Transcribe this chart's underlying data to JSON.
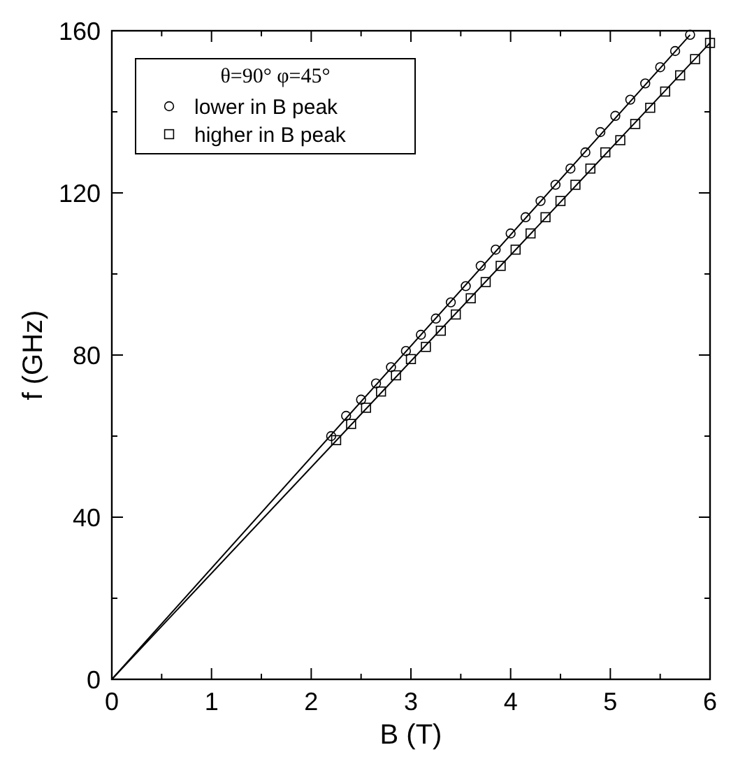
{
  "chart_data": {
    "type": "scatter",
    "xlabel": "B (T)",
    "ylabel": "f (GHz)",
    "legend_title": "θ=90° φ=45°",
    "xlim": [
      0,
      6
    ],
    "ylim": [
      0,
      160
    ],
    "xticks": [
      0,
      {
        "value": 0.5,
        "label": null
      },
      1,
      {
        "value": 1.5,
        "label": null
      },
      2,
      {
        "value": 2.5,
        "label": null
      },
      3,
      {
        "value": 3.5,
        "label": null
      },
      4,
      {
        "value": 4.5,
        "label": null
      },
      5,
      {
        "value": 5.5,
        "label": null
      },
      6
    ],
    "yticks": [
      0,
      {
        "value": 20,
        "label": null
      },
      40,
      {
        "value": 60,
        "label": null
      },
      80,
      {
        "value": 100,
        "label": null
      },
      120,
      {
        "value": 140,
        "label": null
      },
      160
    ],
    "legend": "top left",
    "grid": false,
    "series": [
      {
        "name": "lower in B peak",
        "marker": "circle",
        "color": "#000000",
        "x": [
          2.2,
          2.35,
          2.5,
          2.65,
          2.8,
          2.95,
          3.1,
          3.25,
          3.4,
          3.55,
          3.7,
          3.85,
          4.0,
          4.15,
          4.3,
          4.45,
          4.6,
          4.75,
          4.9,
          5.05,
          5.2,
          5.35,
          5.5,
          5.65,
          5.8
        ],
        "values": [
          60,
          65,
          69,
          73,
          77,
          81,
          85,
          89,
          93,
          97,
          102,
          106,
          110,
          114,
          118,
          122,
          126,
          130,
          135,
          139,
          143,
          147,
          151,
          155,
          159
        ]
      },
      {
        "name": "higher in B peak",
        "marker": "square",
        "color": "#000000",
        "x": [
          2.25,
          2.4,
          2.55,
          2.7,
          2.85,
          3.0,
          3.15,
          3.3,
          3.45,
          3.6,
          3.75,
          3.9,
          4.05,
          4.2,
          4.35,
          4.5,
          4.65,
          4.8,
          4.95,
          5.1,
          5.25,
          5.4,
          5.55,
          5.7,
          5.85,
          6.0
        ],
        "values": [
          59,
          63,
          67,
          71,
          75,
          79,
          82,
          86,
          90,
          94,
          98,
          102,
          106,
          110,
          114,
          118,
          122,
          126,
          130,
          133,
          137,
          141,
          145,
          149,
          153,
          157
        ]
      },
      {
        "type": "line",
        "color": "#000000",
        "line_style": "solid",
        "x": [
          0,
          5.8
        ],
        "values": [
          0,
          159
        ]
      },
      {
        "type": "line",
        "color": "#000000",
        "line_style": "solid",
        "x": [
          0,
          6
        ],
        "values": [
          0,
          157
        ]
      }
    ]
  }
}
